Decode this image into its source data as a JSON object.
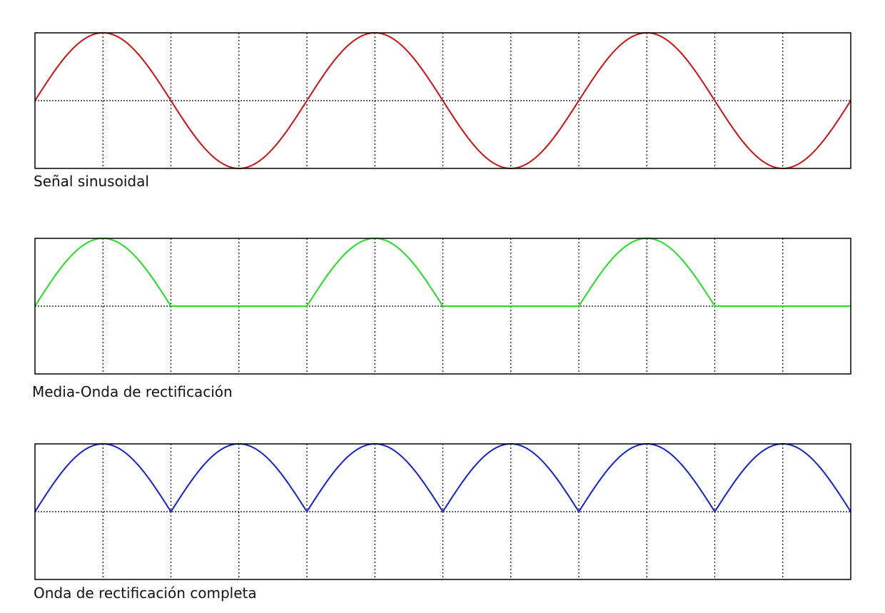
{
  "chart_data": [
    {
      "type": "line",
      "title": "Señal sinusoidal",
      "x": [
        0,
        1.5
      ],
      "xlim": [
        0,
        6
      ],
      "ylim": [
        -1,
        1
      ],
      "grid": true,
      "series": [
        {
          "function": "sin",
          "cycles": 3,
          "color": "#cc1111"
        }
      ]
    },
    {
      "type": "line",
      "title": "Media-Onda de rectificación",
      "xlim": [
        0,
        6
      ],
      "ylim": [
        -1,
        1
      ],
      "grid": true,
      "series": [
        {
          "function": "half-wave-rectified-sin",
          "cycles": 3,
          "color": "#22dd22"
        }
      ]
    },
    {
      "type": "line",
      "title": "Onda de rectificación completa",
      "xlim": [
        0,
        6
      ],
      "ylim": [
        -1,
        1
      ],
      "grid": true,
      "series": [
        {
          "function": "full-wave-rectified-sin",
          "cycles": 3,
          "color": "#1122cc"
        }
      ]
    }
  ]
}
